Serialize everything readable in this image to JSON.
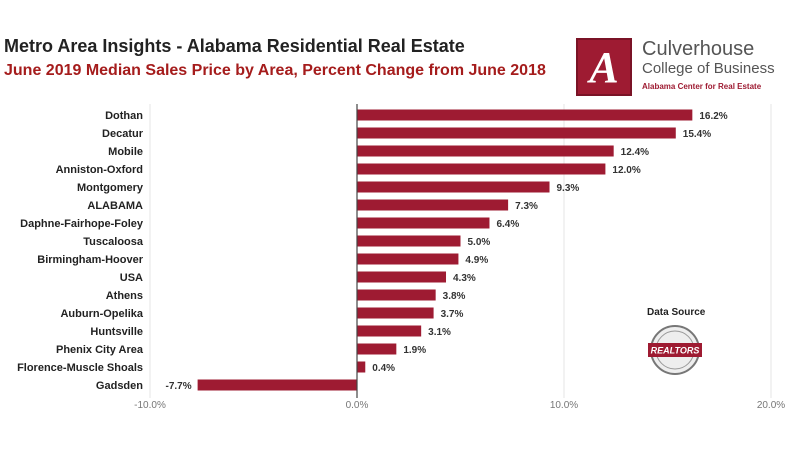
{
  "title": "Metro Area Insights - Alabama Residential Real Estate",
  "subtitle": "June 2019 Median Sales Price by Area, Percent Change from June 2018",
  "logo": {
    "letter": "A",
    "name": "Culverhouse",
    "college": "College of Business",
    "center": "Alabama Center for Real Estate"
  },
  "data_source": {
    "label": "Data Source",
    "badge_text": "REALTORS"
  },
  "colors": {
    "bar": "#9e1b32",
    "axis": "#444444",
    "grid": "#e6e6e6"
  },
  "chart_data": {
    "type": "bar",
    "orientation": "horizontal",
    "categories": [
      "Dothan",
      "Decatur",
      "Mobile",
      "Anniston-Oxford",
      "Montgomery",
      "ALABAMA",
      "Daphne-Fairhope-Foley",
      "Tuscaloosa",
      "Birmingham-Hoover",
      "USA",
      "Athens",
      "Auburn-Opelika",
      "Huntsville",
      "Phenix City Area",
      "Florence-Muscle Shoals",
      "Gadsden"
    ],
    "values": [
      16.2,
      15.4,
      12.4,
      12.0,
      9.3,
      7.3,
      6.4,
      5.0,
      4.9,
      4.3,
      3.8,
      3.7,
      3.1,
      1.9,
      0.4,
      -7.7
    ],
    "value_labels": [
      "16.2%",
      "15.4%",
      "12.4%",
      "12.0%",
      "9.3%",
      "7.3%",
      "6.4%",
      "5.0%",
      "4.9%",
      "4.3%",
      "3.8%",
      "3.7%",
      "3.1%",
      "1.9%",
      "0.4%",
      "-7.7%"
    ],
    "xlim": [
      -10,
      20
    ],
    "xticks": [
      -10,
      0,
      10,
      20
    ],
    "xtick_labels": [
      "-10.0%",
      "0.0%",
      "10.0%",
      "20.0%"
    ],
    "grid": true
  }
}
